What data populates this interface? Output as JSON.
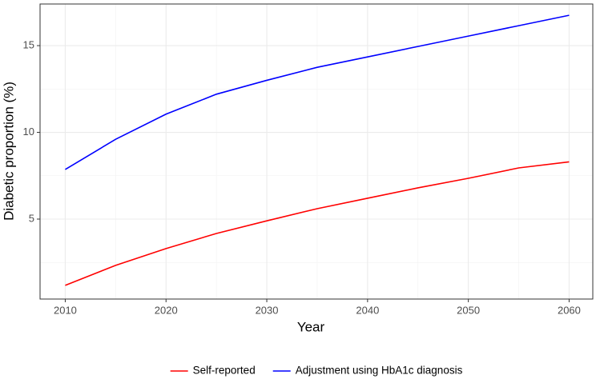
{
  "chart_data": {
    "type": "line",
    "x": [
      2010,
      2015,
      2020,
      2025,
      2030,
      2035,
      2040,
      2045,
      2050,
      2055,
      2060
    ],
    "series": [
      {
        "name": "Self-reported",
        "color": "#ff0000",
        "values": [
          1.18,
          2.33,
          3.3,
          4.17,
          4.9,
          5.6,
          6.2,
          6.8,
          7.35,
          7.95,
          8.3
        ]
      },
      {
        "name": "Adjustment using HbA1c diagnosis",
        "color": "#0000ff",
        "values": [
          7.86,
          9.6,
          11.05,
          12.2,
          13.0,
          13.75,
          14.35,
          14.95,
          15.55,
          16.15,
          16.75
        ]
      }
    ],
    "xlabel": "Year",
    "ylabel": "Diabetic proportion (%)",
    "xlim": [
      2007.5,
      2062.35
    ],
    "ylim": [
      0.39,
      17.4
    ],
    "xticks": [
      2010,
      2020,
      2030,
      2040,
      2050,
      2060
    ],
    "yticks": [
      5,
      10,
      15
    ],
    "grid": true,
    "legend": "bottom"
  }
}
